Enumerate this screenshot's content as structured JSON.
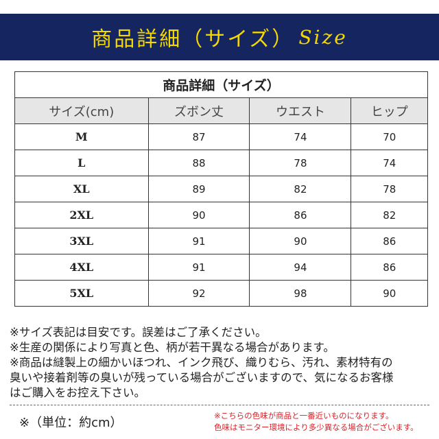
{
  "banner": {
    "title": "商品詳細（サイズ）",
    "title_en": "Size",
    "bg_color": "#142560",
    "text_color": "#f5d800"
  },
  "table": {
    "title": "商品詳細（サイズ）",
    "headers": [
      "サイズ(cm)",
      "ズボン丈",
      "ウエスト",
      "ヒップ"
    ],
    "rows": [
      [
        "M",
        "87",
        "74",
        "70"
      ],
      [
        "L",
        "88",
        "78",
        "74"
      ],
      [
        "XL",
        "89",
        "82",
        "78"
      ],
      [
        "2XL",
        "90",
        "86",
        "82"
      ],
      [
        "3XL",
        "91",
        "90",
        "86"
      ],
      [
        "4XL",
        "91",
        "94",
        "86"
      ],
      [
        "5XL",
        "92",
        "98",
        "90"
      ]
    ]
  },
  "notes": [
    "※サイズ表記は目安です。誤差はご了承ください。",
    "※生産の関係により写真と色、柄が若干異なる場合があります。",
    "※商品は縫製上の細かいほつれ、インク飛び、織りむら、汚れ、素材特有の",
    "臭いや接着剤等の臭いが残っている場合がございますので、気になるお客様",
    "はご購入をお控え下さい。"
  ],
  "unit": "※（単位：約cm）",
  "color_notes": [
    "※こちらの色味が商品と一番近いものになります。",
    "色味はモニター環境により多少異なる場合がございます。"
  ]
}
